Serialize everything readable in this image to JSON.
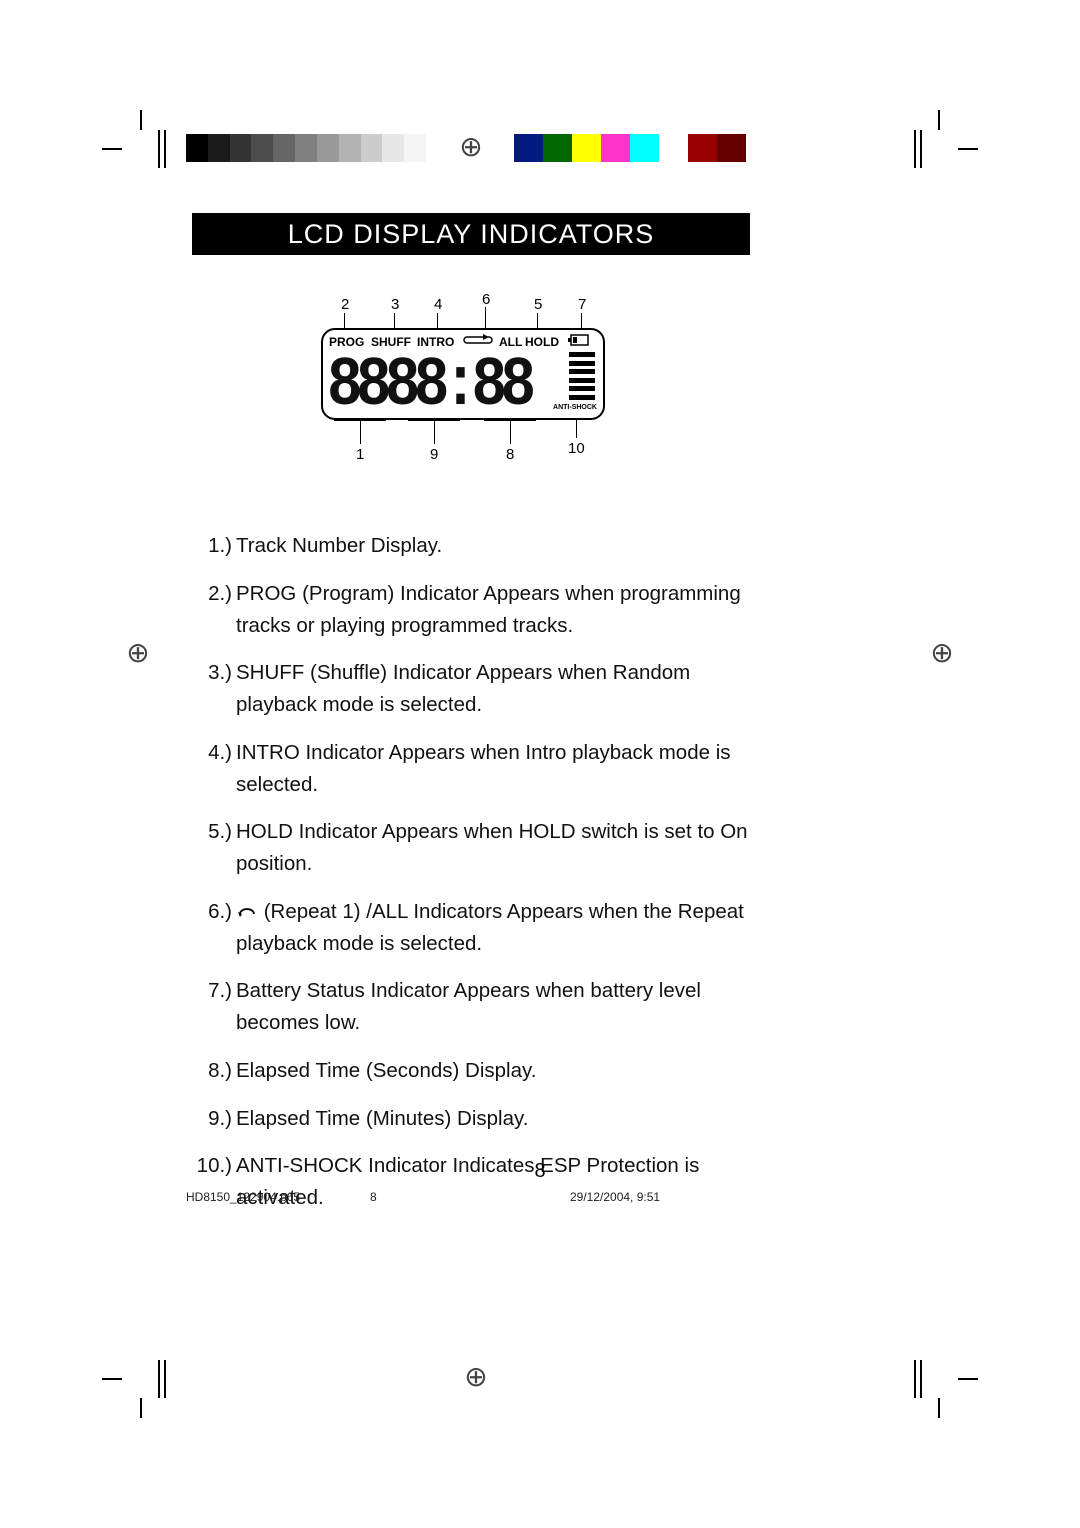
{
  "title": "LCD DISPLAY INDICATORS",
  "lcd": {
    "top_labels": {
      "prog": "PROG",
      "shuff": "SHUFF",
      "intro": "INTRO",
      "all": "ALL",
      "hold": "HOLD"
    },
    "digits": "8888:88",
    "antishock_label": "ANTI-SHOCK",
    "callouts_top": [
      "2",
      "3",
      "4",
      "6",
      "5",
      "7"
    ],
    "callouts_bottom": [
      "1",
      "9",
      "8",
      "10"
    ]
  },
  "items": [
    {
      "n": "1.)",
      "text": "Track Number Display."
    },
    {
      "n": "2.)",
      "text": "PROG (Program) Indicator    Appears when programming tracks or playing programmed tracks."
    },
    {
      "n": "3.)",
      "text": "SHUFF (Shuffle) Indicator    Appears when Random playback mode is selected."
    },
    {
      "n": "4.)",
      "text": "INTRO Indicator    Appears when Intro playback mode is selected."
    },
    {
      "n": "5.)",
      "text": "HOLD Indicator    Appears when HOLD switch is set to  On  position."
    },
    {
      "n": "6.)",
      "text_pre": "",
      "text_mid": " (Repeat 1) /ALL Indicators    Appears when the Repeat playback mode is selected.",
      "has_icon": true
    },
    {
      "n": "7.)",
      "text": "Battery Status Indicator    Appears when battery level becomes low."
    },
    {
      "n": "8.)",
      "text": "Elapsed Time (Seconds) Display."
    },
    {
      "n": "9.)",
      "text": "Elapsed Time (Minutes) Display."
    },
    {
      "n": "10.)",
      "text": "ANTI-SHOCK Indicator    Indicates ESP Protection is activated."
    }
  ],
  "page_number": "8",
  "footer": {
    "file": "HD8150_122904.p65",
    "sheet": "8",
    "datetime": "29/12/2004, 9:51"
  },
  "color_bar_gray": [
    "#000000",
    "#1a1a1a",
    "#333333",
    "#4d4d4d",
    "#666666",
    "#808080",
    "#999999",
    "#b3b3b3",
    "#cccccc",
    "#e6e6e6",
    "#f5f5f5",
    "#ffffff"
  ],
  "color_bar_rgb": [
    "#001a80",
    "#006600",
    "#ffff00",
    "#ff33cc",
    "#00ffff",
    "#ffffff",
    "#990000",
    "#660000"
  ]
}
